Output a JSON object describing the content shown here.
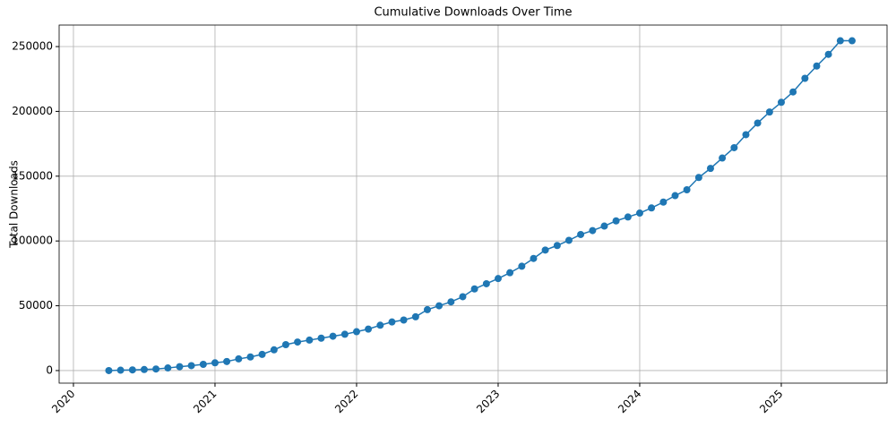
{
  "chart_data": {
    "type": "line",
    "title": "Cumulative Downloads Over Time",
    "y_label": "Total Downloads",
    "x": [
      2020.25,
      2020.333,
      2020.417,
      2020.5,
      2020.583,
      2020.667,
      2020.75,
      2020.833,
      2020.917,
      2021.0,
      2021.083,
      2021.167,
      2021.25,
      2021.333,
      2021.417,
      2021.5,
      2021.583,
      2021.667,
      2021.75,
      2021.833,
      2021.917,
      2022.0,
      2022.083,
      2022.167,
      2022.25,
      2022.333,
      2022.417,
      2022.5,
      2022.583,
      2022.667,
      2022.75,
      2022.833,
      2022.917,
      2023.0,
      2023.083,
      2023.167,
      2023.25,
      2023.333,
      2023.417,
      2023.5,
      2023.583,
      2023.667,
      2023.75,
      2023.833,
      2023.917,
      2024.0,
      2024.083,
      2024.167,
      2024.25,
      2024.333,
      2024.417,
      2024.5,
      2024.583,
      2024.667,
      2024.75,
      2024.833,
      2024.917,
      2025.0,
      2025.083,
      2025.167,
      2025.25,
      2025.333,
      2025.417,
      2025.5
    ],
    "series": [
      {
        "name": "Total Downloads",
        "color": "#1f77b4",
        "values": [
          0,
          300,
          500,
          800,
          1200,
          2000,
          3000,
          3800,
          4800,
          6000,
          7000,
          9000,
          10500,
          12500,
          16000,
          20000,
          22000,
          23500,
          25000,
          26500,
          28000,
          30000,
          32000,
          35000,
          37500,
          39000,
          41500,
          47000,
          50000,
          53000,
          57000,
          63000,
          67000,
          71000,
          75500,
          80500,
          86500,
          93000,
          96500,
          100500,
          105000,
          108000,
          111500,
          115500,
          118500,
          121500,
          125500,
          130000,
          135000,
          139500,
          149000,
          156000,
          164000,
          172000,
          182000,
          191000,
          199500,
          207000,
          215000,
          225500,
          235000,
          244000,
          254500,
          254500
        ]
      }
    ],
    "xlim": [
      2019.899,
      2025.747
    ],
    "xticks": [
      2020,
      2021,
      2022,
      2023,
      2024,
      2025
    ],
    "ylim": [
      -9700,
      266600
    ],
    "yticks": [
      0,
      50000,
      100000,
      150000,
      200000,
      250000
    ],
    "grid": true
  }
}
